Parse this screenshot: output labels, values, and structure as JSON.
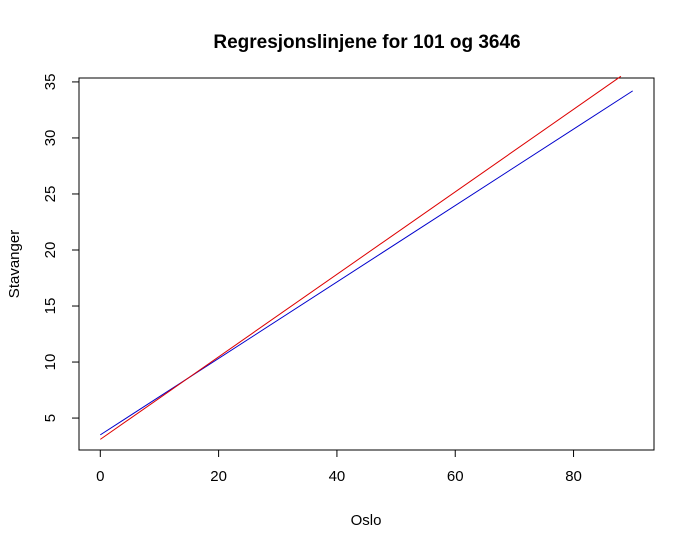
{
  "chart_data": {
    "type": "line",
    "title": "Regresjonslinjene for 101 og 3646",
    "xlabel": "Oslo",
    "ylabel": "Stavanger",
    "xlim": [
      -3.6,
      93.6
    ],
    "ylim": [
      2.15,
      35.35
    ],
    "xticks": [
      0,
      20,
      40,
      60,
      80
    ],
    "yticks": [
      5,
      10,
      15,
      20,
      25,
      30,
      35
    ],
    "grid": false,
    "series": [
      {
        "color": "#0000cc",
        "x": [
          0,
          90
        ],
        "y": [
          3.5,
          34.2
        ]
      },
      {
        "color": "#dd0000",
        "x": [
          0,
          88
        ],
        "y": [
          3.1,
          35.5
        ]
      }
    ]
  }
}
